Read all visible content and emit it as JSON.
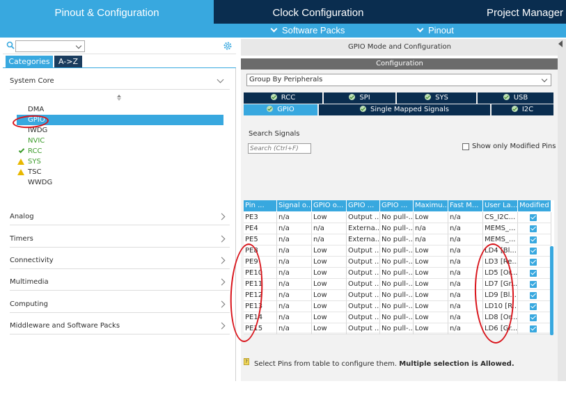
{
  "tabs": {
    "pinout": "Pinout & Configuration",
    "clock": "Clock Configuration",
    "project": "Project Manager"
  },
  "subnav": {
    "software_packs": "Software Packs",
    "pinout": "Pinout"
  },
  "left": {
    "search_value": "",
    "categories_tab": "Categories",
    "az_tab": "A->Z",
    "system_core": "System Core",
    "peripherals": [
      {
        "label": "DMA",
        "status": "none",
        "color": "#2b2b2b"
      },
      {
        "label": "GPIO",
        "status": "selected",
        "color": "#ffffff"
      },
      {
        "label": "IWDG",
        "status": "none",
        "color": "#2b2b2b"
      },
      {
        "label": "NVIC",
        "status": "none",
        "color": "#3b9b2a"
      },
      {
        "label": "RCC",
        "status": "ok",
        "color": "#3b9b2a"
      },
      {
        "label": "SYS",
        "status": "warning",
        "color": "#3b9b2a"
      },
      {
        "label": "TSC",
        "status": "warning",
        "color": "#2b2b2b"
      },
      {
        "label": "WWDG",
        "status": "none",
        "color": "#2b2b2b"
      }
    ],
    "sections": [
      "Analog",
      "Timers",
      "Connectivity",
      "Multimedia",
      "Computing",
      "Middleware and Software Packs"
    ]
  },
  "right": {
    "mode_title": "GPIO Mode and Configuration",
    "configuration": "Configuration",
    "group_by": "Group By Peripherals",
    "peripheral_tabs_row1": [
      "RCC",
      "SPI",
      "SYS",
      "USB"
    ],
    "peripheral_tabs_row2": [
      "GPIO",
      "Single Mapped Signals",
      "I2C"
    ],
    "search_signals_label": "Search Signals",
    "search_placeholder": "Search (Ctrl+F)",
    "show_modified": "Show only Modified Pins",
    "columns": [
      "Pin ...",
      "Signal o...",
      "GPIO o...",
      "GPIO ...",
      "GPIO ...",
      "Maximu...",
      "Fast M...",
      "User La...",
      "Modified"
    ],
    "rows": [
      [
        "PE3",
        "n/a",
        "Low",
        "Output ...",
        "No pull-...",
        "Low",
        "n/a",
        "CS_I2C..."
      ],
      [
        "PE4",
        "n/a",
        "n/a",
        "Externa...",
        "No pull-...",
        "n/a",
        "n/a",
        "MEMS_..."
      ],
      [
        "PE5",
        "n/a",
        "n/a",
        "Externa...",
        "No pull-...",
        "n/a",
        "n/a",
        "MEMS_..."
      ],
      [
        "PE8",
        "n/a",
        "Low",
        "Output ...",
        "No pull-...",
        "Low",
        "n/a",
        "LD4 [Bl..."
      ],
      [
        "PE9",
        "n/a",
        "Low",
        "Output ...",
        "No pull-...",
        "Low",
        "n/a",
        "LD3 [Re..."
      ],
      [
        "PE10",
        "n/a",
        "Low",
        "Output ...",
        "No pull-...",
        "Low",
        "n/a",
        "LD5 [Or..."
      ],
      [
        "PE11",
        "n/a",
        "Low",
        "Output ...",
        "No pull-...",
        "Low",
        "n/a",
        "LD7 [Gr..."
      ],
      [
        "PE12",
        "n/a",
        "Low",
        "Output ...",
        "No pull-...",
        "Low",
        "n/a",
        "LD9 [Bl..."
      ],
      [
        "PE13",
        "n/a",
        "Low",
        "Output ...",
        "No pull-...",
        "Low",
        "n/a",
        "LD10 [R..."
      ],
      [
        "PE14",
        "n/a",
        "Low",
        "Output ...",
        "No pull-...",
        "Low",
        "n/a",
        "LD8 [Or..."
      ],
      [
        "PE15",
        "n/a",
        "Low",
        "Output ...",
        "No pull-...",
        "Low",
        "n/a",
        "LD6 [Gr..."
      ]
    ],
    "hint_text": "Select Pins from table to configure them.",
    "hint_bold": "Multiple selection is Allowed."
  },
  "colors": {
    "accent": "#38a8df",
    "navy": "#0a2d4f",
    "annotation": "#d9141b"
  }
}
